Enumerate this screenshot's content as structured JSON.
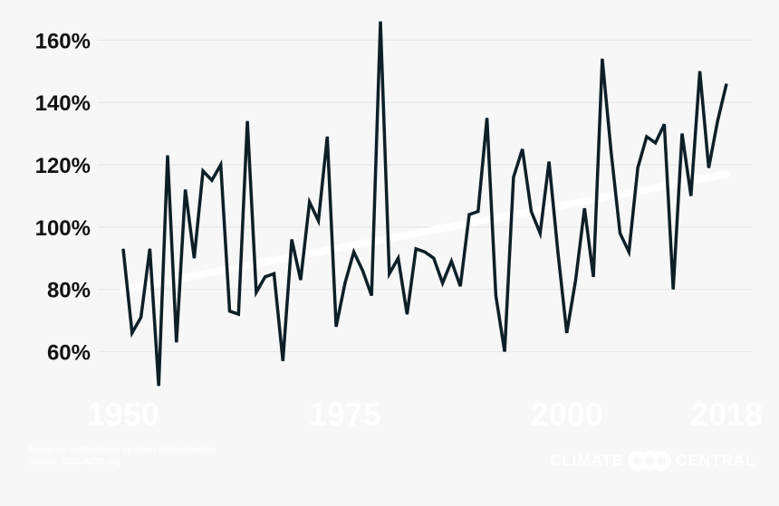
{
  "chart_data": {
    "type": "line",
    "x": [
      1950,
      1951,
      1952,
      1953,
      1954,
      1955,
      1956,
      1957,
      1958,
      1959,
      1960,
      1961,
      1962,
      1963,
      1964,
      1965,
      1966,
      1967,
      1968,
      1969,
      1970,
      1971,
      1972,
      1973,
      1974,
      1975,
      1976,
      1977,
      1978,
      1979,
      1980,
      1981,
      1982,
      1983,
      1984,
      1985,
      1986,
      1987,
      1988,
      1989,
      1990,
      1991,
      1992,
      1993,
      1994,
      1995,
      1996,
      1997,
      1998,
      1999,
      2000,
      2001,
      2002,
      2003,
      2004,
      2005,
      2006,
      2007,
      2008,
      2009,
      2010,
      2011,
      2012,
      2013,
      2014,
      2015,
      2016,
      2017,
      2018
    ],
    "series": [
      {
        "values": [
          93,
          66,
          71,
          93,
          49,
          123,
          63,
          112,
          90,
          118,
          115,
          120,
          73,
          72,
          134,
          79,
          84,
          85,
          57,
          96,
          83,
          108,
          102,
          129,
          68,
          82,
          92,
          86,
          78,
          166,
          85,
          90,
          72,
          93,
          92,
          90,
          82,
          89,
          81,
          104,
          105,
          135,
          78,
          60,
          116,
          125,
          105,
          98,
          121,
          92,
          66,
          83,
          106,
          84,
          154,
          124,
          98,
          92,
          119,
          129,
          127,
          133,
          80,
          130,
          110,
          150,
          119,
          134,
          146
        ]
      }
    ],
    "trend": {
      "start": 80,
      "end": 117,
      "color": "#ffffff"
    },
    "line_color": "#0d1f27",
    "yticks": [
      "60%",
      "80%",
      "100%",
      "120%",
      "140%",
      "160%"
    ],
    "ytick_values": [
      60,
      80,
      100,
      120,
      140,
      160
    ],
    "xticks": [
      "1950",
      "1975",
      "2000",
      "2018"
    ],
    "xtick_values": [
      1950,
      1975,
      2000,
      2018
    ],
    "ylim": [
      45,
      170
    ],
    "xlim": [
      1950,
      2018
    ],
    "grid": true
  },
  "footer": {
    "credit_line1": "Based on methodology by Brian Brettschneider",
    "credit_line2": "Source: RCC-ACIS.org",
    "brand_left": "CLIMATE",
    "brand_right": "CENTRAL"
  }
}
